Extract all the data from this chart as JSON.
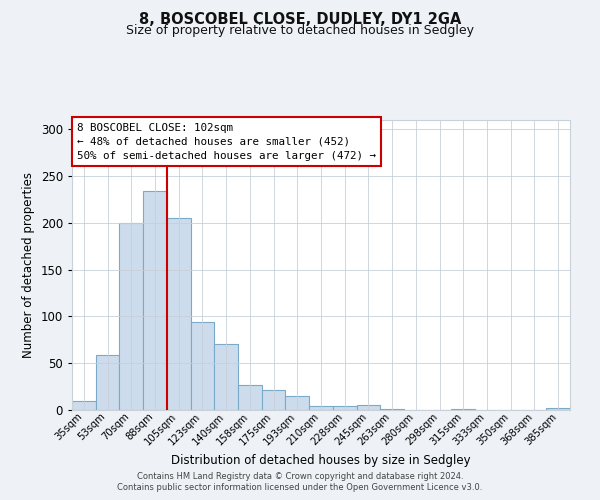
{
  "title": "8, BOSCOBEL CLOSE, DUDLEY, DY1 2GA",
  "subtitle": "Size of property relative to detached houses in Sedgley",
  "xlabel": "Distribution of detached houses by size in Sedgley",
  "ylabel": "Number of detached properties",
  "bar_labels": [
    "35sqm",
    "53sqm",
    "70sqm",
    "88sqm",
    "105sqm",
    "123sqm",
    "140sqm",
    "158sqm",
    "175sqm",
    "193sqm",
    "210sqm",
    "228sqm",
    "245sqm",
    "263sqm",
    "280sqm",
    "298sqm",
    "315sqm",
    "333sqm",
    "350sqm",
    "368sqm",
    "385sqm"
  ],
  "bar_values": [
    10,
    59,
    200,
    234,
    205,
    94,
    71,
    27,
    21,
    15,
    4,
    4,
    5,
    1,
    0,
    0,
    1,
    0,
    0,
    0,
    2
  ],
  "bar_color": "#ccdcec",
  "bar_edge_color": "#7aaac8",
  "vline_color": "#cc0000",
  "ylim": [
    0,
    310
  ],
  "yticks": [
    0,
    50,
    100,
    150,
    200,
    250,
    300
  ],
  "annotation_title": "8 BOSCOBEL CLOSE: 102sqm",
  "annotation_line1": "← 48% of detached houses are smaller (452)",
  "annotation_line2": "50% of semi-detached houses are larger (472) →",
  "annotation_box_facecolor": "#ffffff",
  "annotation_box_edgecolor": "#cc0000",
  "footer1": "Contains HM Land Registry data © Crown copyright and database right 2024.",
  "footer2": "Contains public sector information licensed under the Open Government Licence v3.0.",
  "bg_color": "#eef2f6",
  "plot_bg_color": "#ffffff",
  "grid_color": "#c8d0d8"
}
